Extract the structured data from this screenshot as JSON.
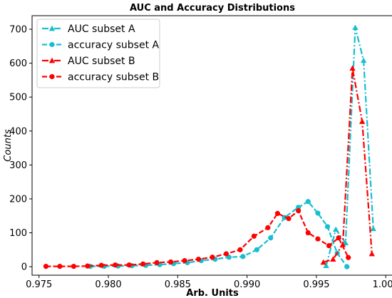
{
  "chart_data": {
    "type": "line",
    "title": "AUC and Accuracy Distributions",
    "xlabel": "Arb. Units",
    "ylabel": "Counts",
    "xlim": [
      0.9745,
      1.0005
    ],
    "ylim": [
      -25,
      740
    ],
    "xticks": [
      0.975,
      0.98,
      0.985,
      0.99,
      0.995,
      1.0
    ],
    "xtick_labels": [
      "0.975",
      "0.980",
      "0.985",
      "0.990",
      "0.995",
      "1.000"
    ],
    "yticks": [
      0,
      100,
      200,
      300,
      400,
      500,
      600,
      700
    ],
    "ytick_labels": [
      "0",
      "100",
      "200",
      "300",
      "400",
      "500",
      "600",
      "700"
    ],
    "grid": false,
    "legend_position": "top-left",
    "series": [
      {
        "name": "AUC subset A",
        "color": "#17becf",
        "dash": "dashdot",
        "marker": "triangle",
        "x": [
          0.9957,
          0.9964,
          0.9971,
          0.9978,
          0.9984,
          0.9991
        ],
        "y": [
          3,
          110,
          70,
          705,
          608,
          112
        ]
      },
      {
        "name": "accuracy subset A",
        "color": "#17becf",
        "dash": "dashed",
        "marker": "circle",
        "x": [
          0.9787,
          0.9797,
          0.9807,
          0.9817,
          0.9827,
          0.9837,
          0.9847,
          0.9857,
          0.9867,
          0.9877,
          0.9887,
          0.9897,
          0.9907,
          0.9917,
          0.9927,
          0.9937,
          0.9944,
          0.9951,
          0.9958,
          0.9965,
          0.9972
        ],
        "y": [
          1,
          1,
          2,
          3,
          4,
          6,
          9,
          12,
          18,
          22,
          28,
          30,
          50,
          85,
          145,
          175,
          192,
          158,
          118,
          40,
          0
        ]
      },
      {
        "name": "AUC subset B",
        "color": "#ff0000",
        "dash": "dashdot",
        "marker": "triangle",
        "x": [
          0.9955,
          0.9962,
          0.9969,
          0.9976,
          0.9983,
          0.999
        ],
        "y": [
          13,
          22,
          65,
          585,
          428,
          38
        ]
      },
      {
        "name": "accuracy subset B",
        "color": "#ff0000",
        "dash": "dashed",
        "marker": "circle",
        "x": [
          0.9755,
          0.9765,
          0.9775,
          0.9785,
          0.9795,
          0.9805,
          0.9815,
          0.9825,
          0.9835,
          0.9845,
          0.9855,
          0.9865,
          0.9875,
          0.9885,
          0.9895,
          0.9905,
          0.9915,
          0.9922,
          0.993,
          0.9937,
          0.9944,
          0.9951,
          0.9959,
          0.9966,
          0.9973
        ],
        "y": [
          1,
          1,
          1,
          2,
          4,
          5,
          5,
          8,
          12,
          14,
          18,
          22,
          28,
          38,
          50,
          90,
          115,
          157,
          142,
          165,
          100,
          82,
          62,
          85,
          27
        ]
      }
    ]
  }
}
